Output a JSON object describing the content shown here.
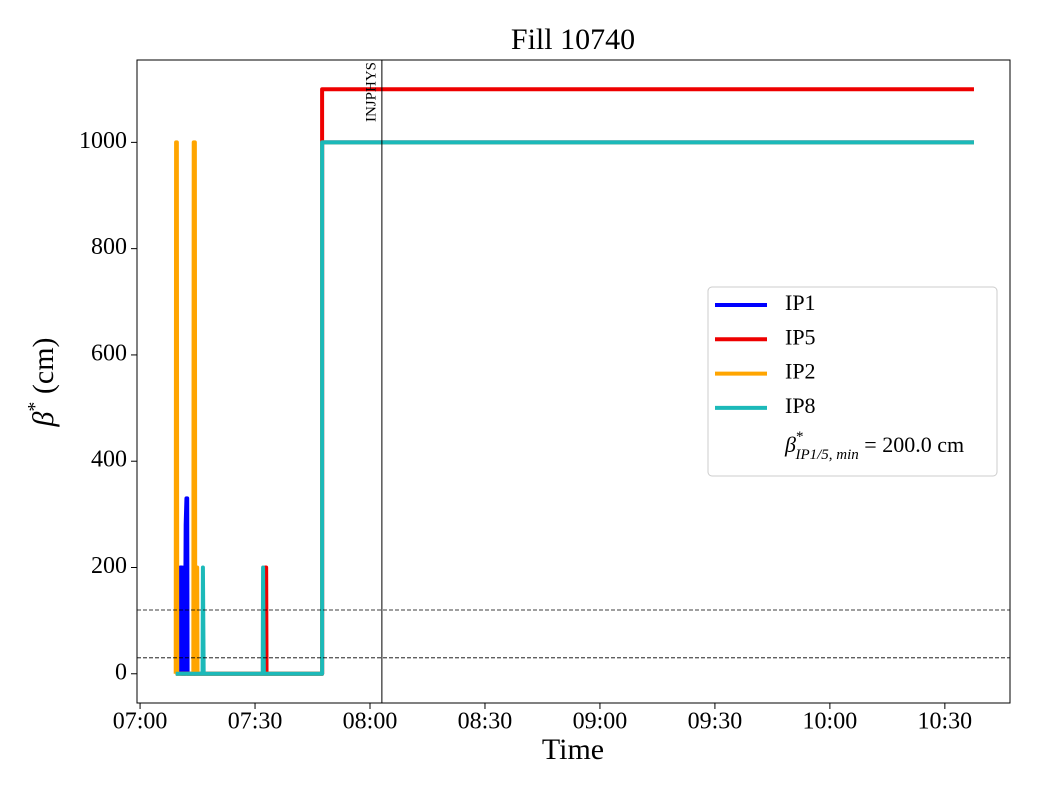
{
  "chart_data": {
    "type": "line",
    "title": "Fill 10740",
    "x_label": "Time",
    "y_label": {
      "symbol": "β",
      "sup": "*",
      "text": " (cm)"
    },
    "xlim": [
      419.2,
      647
    ],
    "ylim": [
      -55,
      1155
    ],
    "xticks": [
      {
        "value": 420,
        "label": "07:00"
      },
      {
        "value": 450,
        "label": "07:30"
      },
      {
        "value": 480,
        "label": "08:00"
      },
      {
        "value": 510,
        "label": "08:30"
      },
      {
        "value": 540,
        "label": "09:00"
      },
      {
        "value": 570,
        "label": "09:30"
      },
      {
        "value": 600,
        "label": "10:00"
      },
      {
        "value": 630,
        "label": "10:30"
      }
    ],
    "yticks": [
      0,
      200,
      400,
      600,
      800,
      1000
    ],
    "series": [
      {
        "name": "IP1",
        "color": "#0000ff",
        "x": [
          430.4,
          430.5,
          430.9,
          431.0,
          431.3,
          431.4,
          431.7,
          431.9,
          432.1,
          432.3,
          432.4,
          467.5,
          467.5,
          637.6
        ],
        "values": [
          0,
          200,
          200,
          0,
          0,
          200,
          0,
          280,
          330,
          330,
          0,
          0,
          1000,
          1000
        ]
      },
      {
        "name": "IP5",
        "color": "#ee0000",
        "x": [
          429.4,
          452.6,
          452.7,
          452.9,
          453.0,
          467.5,
          467.5,
          637.6
        ],
        "values": [
          0,
          0,
          200,
          200,
          0,
          0,
          1100,
          1100
        ]
      },
      {
        "name": "IP2",
        "color": "#ffa500",
        "x": [
          429.3,
          429.4,
          429.6,
          429.7,
          433.9,
          434.0,
          434.3,
          434.4,
          434.8,
          434.9,
          435.0,
          467.5,
          467.5,
          637.6
        ],
        "values": [
          0,
          1000,
          1000,
          0,
          0,
          1000,
          1000,
          0,
          0,
          200,
          0,
          0,
          1000,
          1000
        ]
      },
      {
        "name": "IP8",
        "color": "#1cb9b9",
        "x": [
          429.3,
          436.3,
          436.4,
          436.6,
          452.0,
          452.1,
          452.3,
          467.5,
          467.5,
          637.6
        ],
        "values": [
          0,
          0,
          200,
          0,
          0,
          200,
          0,
          0,
          1000,
          1000
        ]
      }
    ],
    "hlines": [
      120,
      30
    ],
    "vline": {
      "x": 483.1,
      "label": "INJPHYS"
    },
    "legend_note": {
      "symbol": "β",
      "sup": "*",
      "sub": "IP1/5, min",
      "text": " = 200.0 cm"
    },
    "legend_position": "center right"
  }
}
